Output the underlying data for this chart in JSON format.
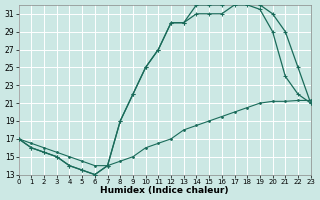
{
  "xlabel": "Humidex (Indice chaleur)",
  "bg_color": "#cce8e4",
  "grid_color": "#b8d8d4",
  "line_color": "#1a6b5a",
  "xlim": [
    0,
    23
  ],
  "ylim": [
    13,
    32
  ],
  "xticks": [
    0,
    1,
    2,
    3,
    4,
    5,
    6,
    7,
    8,
    9,
    10,
    11,
    12,
    13,
    14,
    15,
    16,
    17,
    18,
    19,
    20,
    21,
    22,
    23
  ],
  "yticks": [
    13,
    15,
    17,
    19,
    21,
    23,
    25,
    27,
    29,
    31
  ],
  "curve_top_x": [
    0,
    1,
    2,
    3,
    4,
    5,
    6,
    7,
    8,
    9,
    10,
    11,
    12,
    13,
    14,
    15,
    16,
    17,
    18,
    19,
    20,
    21,
    22,
    23
  ],
  "curve_top_y": [
    17,
    16,
    15.5,
    15,
    14,
    13.5,
    13,
    14,
    19,
    22,
    25,
    27,
    30,
    30,
    32,
    32,
    32,
    32.5,
    32.5,
    32,
    31,
    29,
    25,
    21
  ],
  "curve_mid_x": [
    0,
    1,
    2,
    3,
    4,
    5,
    6,
    7,
    8,
    9,
    10,
    11,
    12,
    13,
    14,
    15,
    16,
    17,
    18,
    19,
    20,
    21,
    22,
    23
  ],
  "curve_mid_y": [
    17,
    16,
    15.5,
    15,
    14,
    13.5,
    13,
    14,
    19,
    22,
    25,
    27,
    30,
    30,
    31,
    31,
    31,
    32,
    32,
    31.5,
    29,
    24,
    22,
    21
  ],
  "curve_low_x": [
    0,
    1,
    2,
    3,
    4,
    5,
    6,
    7,
    8,
    9,
    10,
    11,
    12,
    13,
    14,
    15,
    16,
    17,
    18,
    19,
    20,
    21,
    22,
    23
  ],
  "curve_low_y": [
    17,
    16.5,
    16,
    15.5,
    15,
    14.5,
    14,
    14,
    14.5,
    15,
    16,
    16.5,
    17,
    18,
    18.5,
    19,
    19.5,
    20,
    20.5,
    21,
    21.2,
    21.2,
    21.3,
    21.3
  ]
}
